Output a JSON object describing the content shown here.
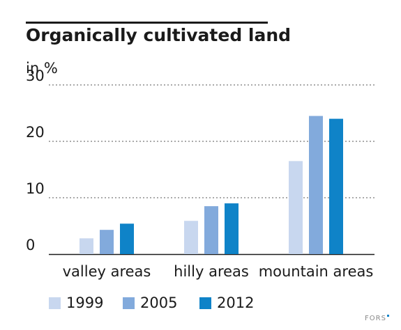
{
  "chart_data": {
    "type": "bar",
    "title": "Organically cultivated land",
    "ylabel": "in %",
    "xlabel": "",
    "ylim": [
      0,
      30
    ],
    "yticks": [
      0,
      10,
      20,
      30
    ],
    "grid": true,
    "legend_position": "bottom-left",
    "categories": [
      "valley areas",
      "hilly areas",
      "mountain areas"
    ],
    "series": [
      {
        "name": "1999",
        "color": "#c8d7ef",
        "values": [
          2.8,
          5.9,
          16.5
        ]
      },
      {
        "name": "2005",
        "color": "#82aadc",
        "values": [
          4.3,
          8.5,
          24.5
        ]
      },
      {
        "name": "2012",
        "color": "#0f83c8",
        "values": [
          5.4,
          9.0,
          24.0
        ]
      }
    ]
  },
  "source": "FORS"
}
